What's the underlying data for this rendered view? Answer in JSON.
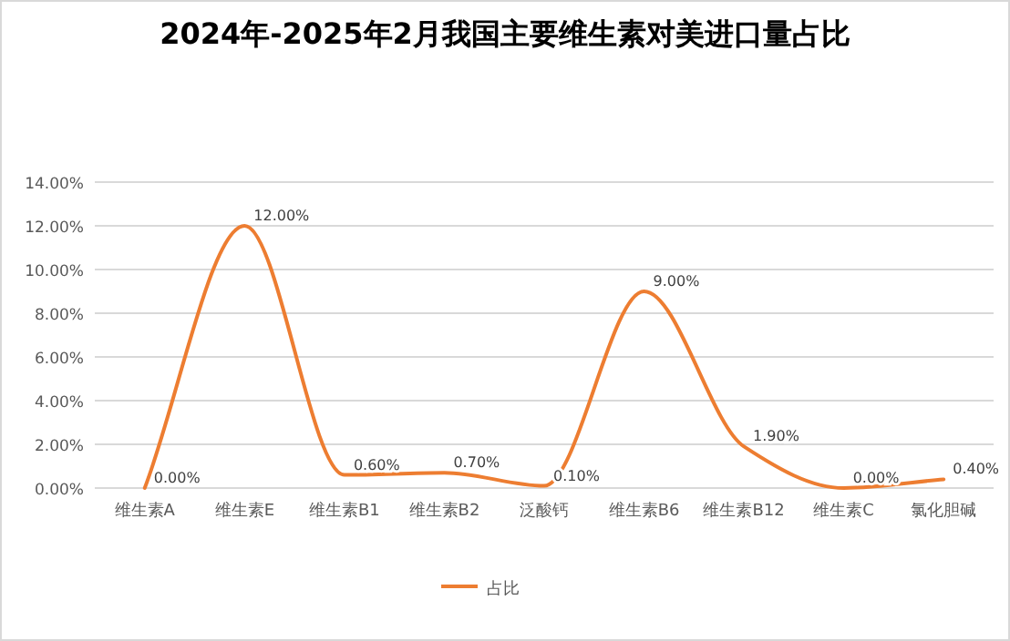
{
  "chart_data": {
    "type": "line",
    "title": "2024年-2025年2月我国主要维生素对美进口量占比",
    "categories": [
      "维生素A",
      "维生素E",
      "维生素B1",
      "维生素B2",
      "泛酸钙",
      "维生素B6",
      "维生素B12",
      "维生素C",
      "氯化胆碱"
    ],
    "series": [
      {
        "name": "占比",
        "color": "#ed7d31",
        "values": [
          0,
          12,
          0.6,
          0.7,
          0.1,
          9,
          1.9,
          0,
          0.4
        ],
        "value_labels": [
          "0.00%",
          "12.00%",
          "0.60%",
          "0.70%",
          "0.10%",
          "9.00%",
          "1.90%",
          "0.00%",
          "0.40%"
        ]
      }
    ],
    "ylim": [
      0,
      14
    ],
    "yticks": [
      {
        "value": 0,
        "label": "0.00%"
      },
      {
        "value": 2,
        "label": "2.00%"
      },
      {
        "value": 4,
        "label": "4.00%"
      },
      {
        "value": 6,
        "label": "6.00%"
      },
      {
        "value": 8,
        "label": "8.00%"
      },
      {
        "value": 10,
        "label": "10.00%"
      },
      {
        "value": 12,
        "label": "12.00%"
      },
      {
        "value": 14,
        "label": "14.00%"
      }
    ],
    "grid": "y",
    "legend": "bottom",
    "marker": "none",
    "line_style": "solid"
  }
}
